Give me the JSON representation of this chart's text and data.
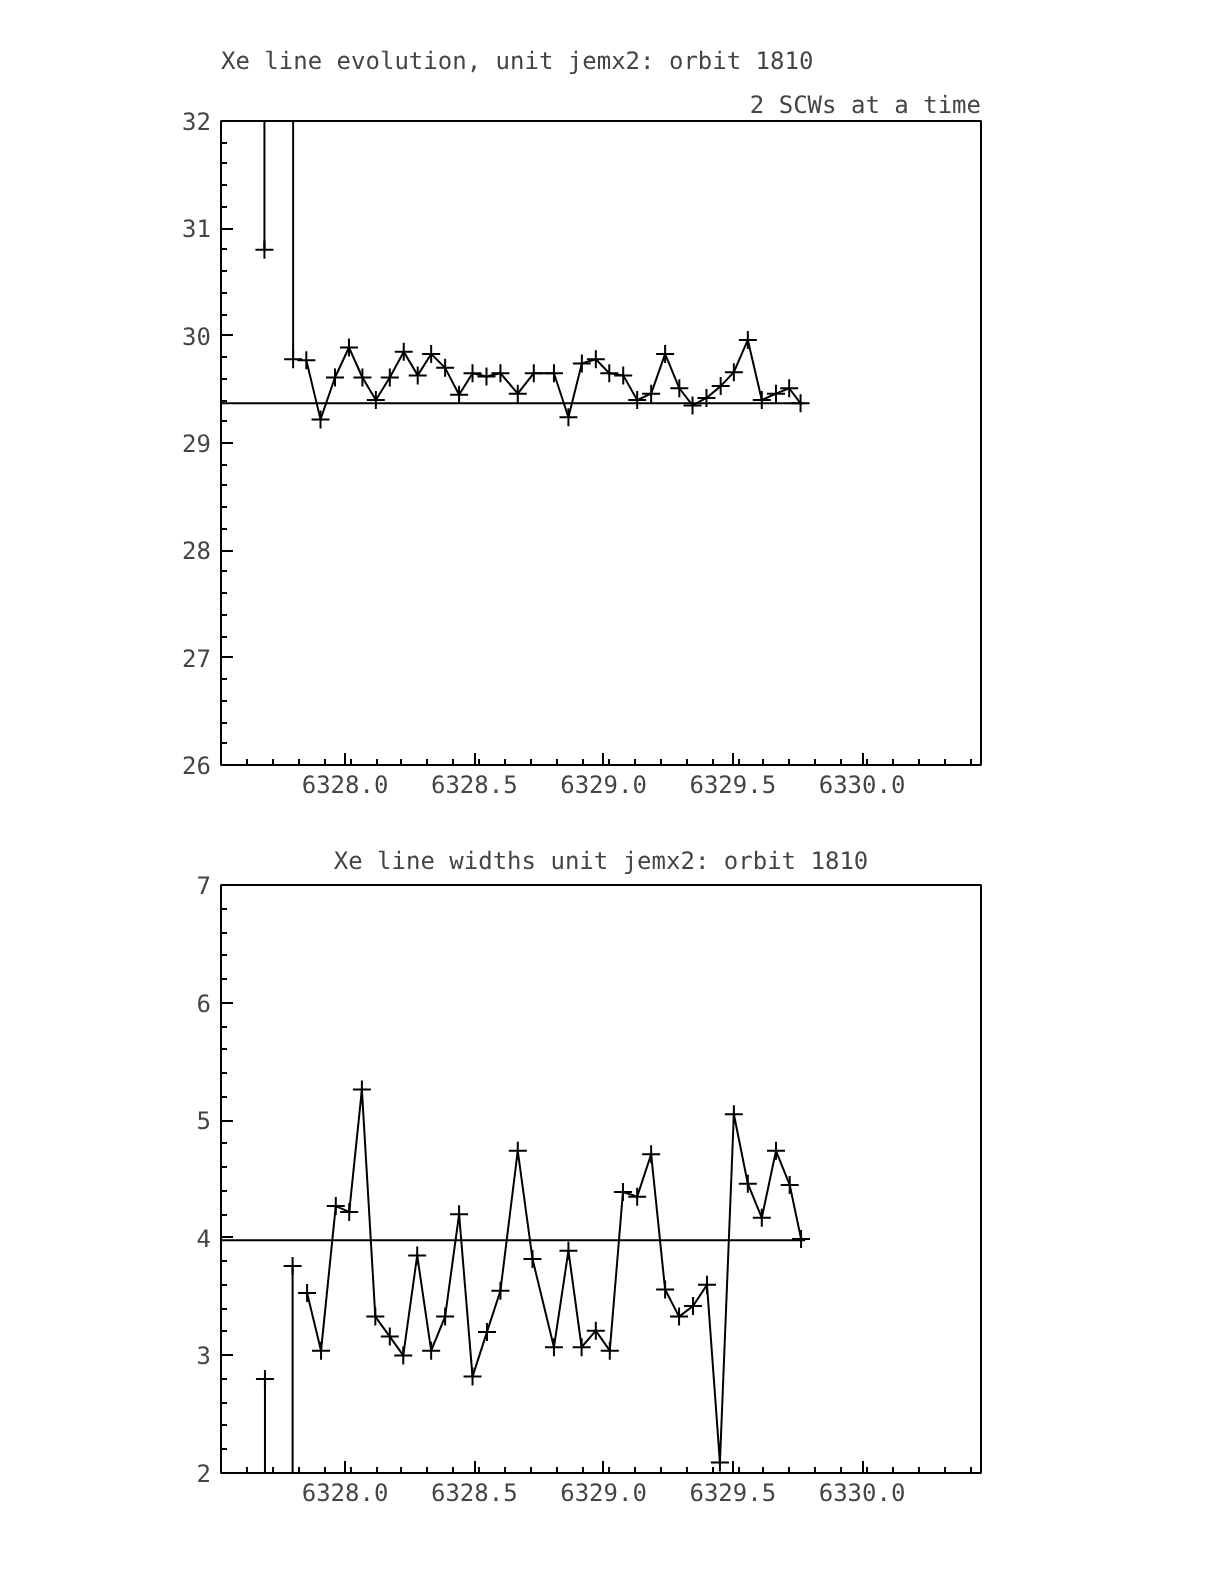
{
  "chart_data": [
    {
      "type": "line",
      "title": "Xe line evolution, unit jemx2: orbit 1810",
      "subtitle": "2 SCWs at a time",
      "marker": "cross",
      "grid": false,
      "xlim": [
        6327.52,
        6330.46
      ],
      "xticks": [
        {
          "value": 6328,
          "label": "6328.0"
        },
        {
          "value": 6328.5,
          "label": "6328.5"
        },
        {
          "value": 6329,
          "label": "6329.0"
        },
        {
          "value": 6329.5,
          "label": "6329.5"
        },
        {
          "value": 6330,
          "label": "6330.0"
        }
      ],
      "ylim": [
        26,
        32
      ],
      "yticks": [
        26,
        27,
        28,
        29,
        30,
        31,
        32
      ],
      "series": [
        {
          "color": "#000000",
          "x": [
            6327.688,
            6327.799,
            6327.85,
            6327.905,
            6327.961,
            6328.015,
            6328.067,
            6328.119,
            6328.173,
            6328.227,
            6328.281,
            6328.333,
            6328.387,
            6328.441,
            6328.493,
            6328.547,
            6328.601,
            6328.668,
            6328.73,
            6328.808,
            6328.864,
            6328.916,
            6328.97,
            6329.022,
            6329.076,
            6329.13,
            6329.184,
            6329.238,
            6329.293,
            6329.344,
            6329.398,
            6329.453,
            6329.504,
            6329.558,
            6329.612,
            6329.667,
            6329.718,
            6329.762
          ],
          "values": [
            30.8,
            null,
            29.77,
            29.22,
            29.61,
            29.89,
            29.61,
            29.4,
            29.61,
            29.85,
            29.63,
            29.83,
            29.7,
            29.45,
            29.65,
            29.62,
            29.65,
            29.46,
            29.65,
            29.65,
            29.24,
            29.74,
            29.78,
            29.65,
            29.63,
            29.4,
            29.46,
            29.83,
            29.51,
            29.35,
            29.42,
            29.53,
            29.66,
            29.96,
            29.4,
            29.46,
            29.51,
            29.37
          ],
          "errors": [
            [
              30.8,
              32
            ],
            null,
            null,
            null,
            null,
            null,
            null,
            null,
            null,
            null,
            null,
            null,
            null,
            null,
            null,
            null,
            null,
            null,
            null,
            null,
            null,
            null,
            null,
            null,
            null,
            null,
            null,
            null,
            null,
            null,
            null,
            null,
            null,
            null,
            null,
            null,
            null,
            null
          ]
        },
        {
          "color": "#000000",
          "x": [
            6327.799
          ],
          "values": [
            29.78
          ],
          "errors": [
            [
              29.78,
              32
            ]
          ]
        },
        {
          "type": "line",
          "marker": "none",
          "color": "#000000",
          "x": [
            6327.52,
            6329.78
          ],
          "values": [
            29.37,
            29.37
          ]
        }
      ]
    },
    {
      "type": "line",
      "title": "Xe line widths unit jemx2: orbit 1810",
      "marker": "cross",
      "grid": false,
      "xlim": [
        6327.52,
        6330.46
      ],
      "xticks": [
        {
          "value": 6328,
          "label": "6328.0"
        },
        {
          "value": 6328.5,
          "label": "6328.5"
        },
        {
          "value": 6329,
          "label": "6329.0"
        },
        {
          "value": 6329.5,
          "label": "6329.5"
        },
        {
          "value": 6330,
          "label": "6330.0"
        }
      ],
      "ylim": [
        2,
        7
      ],
      "yticks": [
        2,
        3,
        4,
        5,
        6,
        7
      ],
      "series": [
        {
          "color": "#000000",
          "x": [
            6327.69,
            6327.797,
            6327.853,
            6327.907,
            6327.964,
            6328.016,
            6328.065,
            6328.117,
            6328.173,
            6328.225,
            6328.279,
            6328.333,
            6328.387,
            6328.441,
            6328.493,
            6328.549,
            6328.601,
            6328.668,
            6328.725,
            6328.808,
            6328.864,
            6328.915,
            6328.97,
            6329.024,
            6329.075,
            6329.13,
            6329.184,
            6329.238,
            6329.292,
            6329.346,
            6329.4,
            6329.45,
            6329.504,
            6329.558,
            6329.612,
            6329.667,
            6329.72,
            6329.764
          ],
          "values": [
            2.8,
            null,
            3.53,
            3.04,
            4.27,
            4.22,
            5.26,
            3.33,
            3.16,
            3.0,
            3.85,
            3.04,
            3.33,
            4.2,
            2.82,
            3.2,
            3.55,
            4.74,
            3.82,
            3.07,
            3.89,
            3.07,
            3.21,
            3.04,
            4.39,
            4.35,
            4.71,
            3.56,
            3.33,
            3.42,
            3.6,
            2.09,
            5.05,
            4.46,
            4.17,
            4.74,
            4.45,
            3.99
          ],
          "errors": [
            [
              2,
              2.8
            ],
            null,
            null,
            null,
            null,
            null,
            null,
            null,
            null,
            null,
            null,
            null,
            null,
            null,
            null,
            null,
            null,
            null,
            null,
            null,
            null,
            null,
            null,
            null,
            null,
            null,
            null,
            null,
            null,
            null,
            null,
            null,
            null,
            null,
            null,
            null,
            null,
            null
          ]
        },
        {
          "color": "#000000",
          "x": [
            6327.797
          ],
          "values": [
            3.76
          ],
          "errors": [
            [
              2,
              3.76
            ]
          ]
        },
        {
          "type": "line",
          "marker": "none",
          "color": "#000000",
          "x": [
            6327.52,
            6329.78
          ],
          "values": [
            3.98,
            3.98
          ]
        }
      ]
    }
  ]
}
